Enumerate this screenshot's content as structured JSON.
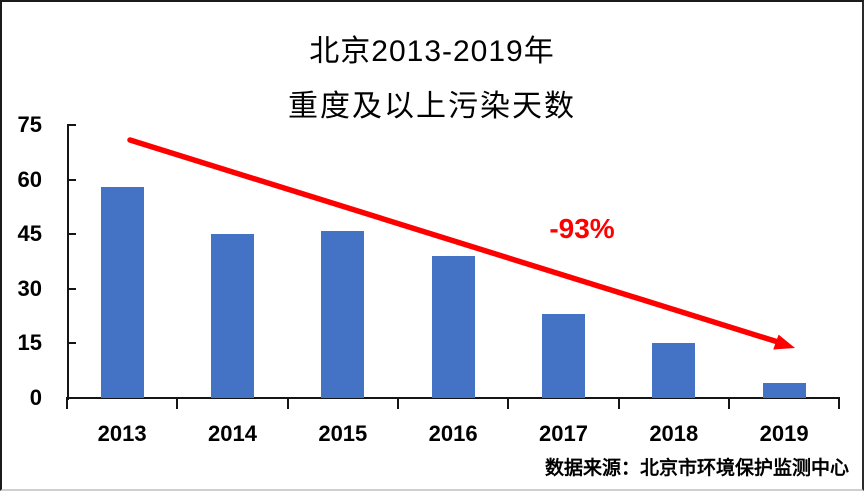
{
  "chart": {
    "title_line1": "北京2013-2019年",
    "title_line2": "重度及以上污染天数",
    "annotation": "-93%",
    "source": "数据来源：北京市环境保护监测中心"
  },
  "chart_data": {
    "type": "bar",
    "title": "北京2013-2019年 重度及以上污染天数",
    "categories": [
      "2013",
      "2014",
      "2015",
      "2016",
      "2017",
      "2018",
      "2019"
    ],
    "values": [
      58,
      45,
      46,
      39,
      23,
      15,
      4
    ],
    "xlabel": "",
    "ylabel": "",
    "ylim": [
      0,
      75
    ],
    "yticks": [
      0,
      15,
      30,
      45,
      60,
      75
    ],
    "grid": false,
    "legend": "none",
    "bar_color": "#4472C4",
    "axis_color": "#151515",
    "annotation": "-93%",
    "annotation_color": "#FF0000",
    "source": "数据来源：北京市环境保护监测中心"
  }
}
